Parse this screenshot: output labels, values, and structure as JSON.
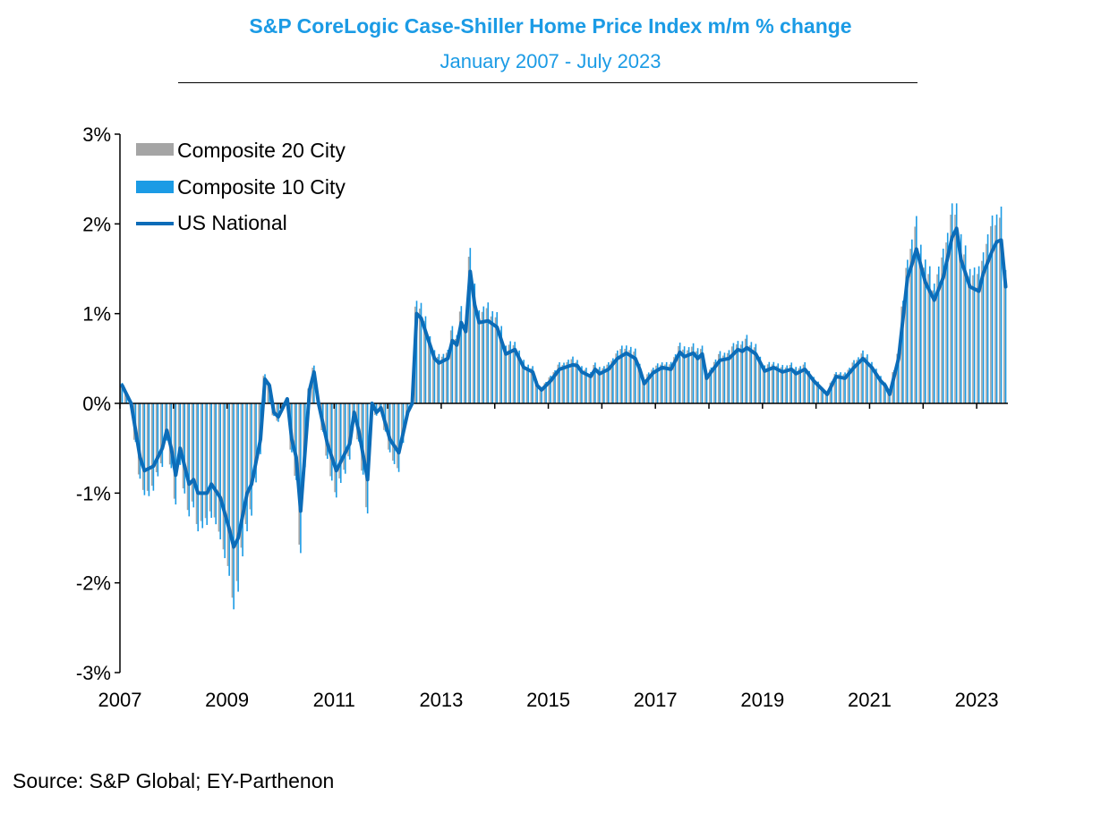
{
  "chart_data": {
    "type": "bar+line",
    "title": "S&P CoreLogic Case-Shiller Home Price Index m/m % change",
    "subtitle": "January 2007 - July 2023",
    "source": "Source: S&P Global; EY-Parthenon",
    "ylim": [
      -3,
      3
    ],
    "y_ticks": [
      3,
      2,
      1,
      0,
      -1,
      -2,
      -3
    ],
    "y_tick_labels": [
      "3%",
      "2%",
      "1%",
      "0%",
      "-1%",
      "-2%",
      "-3%"
    ],
    "x_ticks": [
      2007,
      2009,
      2011,
      2013,
      2015,
      2017,
      2019,
      2021,
      2023
    ],
    "x_tick_labels": [
      "2007",
      "2009",
      "2011",
      "2013",
      "2015",
      "2017",
      "2019",
      "2021",
      "2023"
    ],
    "grid": false,
    "legend_position": "top-left",
    "x_start": "2007-01",
    "x_end": "2023-07",
    "national_anchors": [
      [
        "2007-01",
        0.2
      ],
      [
        "2007-03",
        0.0
      ],
      [
        "2007-05",
        -0.6
      ],
      [
        "2007-06",
        -0.75
      ],
      [
        "2007-08",
        -0.7
      ],
      [
        "2007-10",
        -0.5
      ],
      [
        "2007-11",
        -0.3
      ],
      [
        "2007-12",
        -0.5
      ],
      [
        "2008-01",
        -0.8
      ],
      [
        "2008-02",
        -0.5
      ],
      [
        "2008-04",
        -0.9
      ],
      [
        "2008-05",
        -0.85
      ],
      [
        "2008-06",
        -1.0
      ],
      [
        "2008-08",
        -1.0
      ],
      [
        "2008-09",
        -0.9
      ],
      [
        "2008-11",
        -1.05
      ],
      [
        "2009-01",
        -1.4
      ],
      [
        "2009-02",
        -1.6
      ],
      [
        "2009-03",
        -1.5
      ],
      [
        "2009-05",
        -1.0
      ],
      [
        "2009-06",
        -0.9
      ],
      [
        "2009-08",
        -0.4
      ],
      [
        "2009-09",
        0.27
      ],
      [
        "2009-10",
        0.2
      ],
      [
        "2009-11",
        -0.1
      ],
      [
        "2009-12",
        -0.15
      ],
      [
        "2010-02",
        0.05
      ],
      [
        "2010-03",
        -0.4
      ],
      [
        "2010-04",
        -0.6
      ],
      [
        "2010-05",
        -1.2
      ],
      [
        "2010-07",
        0.15
      ],
      [
        "2010-08",
        0.35
      ],
      [
        "2010-09",
        0.0
      ],
      [
        "2010-11",
        -0.45
      ],
      [
        "2011-01",
        -0.75
      ],
      [
        "2011-02",
        -0.65
      ],
      [
        "2011-04",
        -0.45
      ],
      [
        "2011-05",
        -0.1
      ],
      [
        "2011-06",
        -0.3
      ],
      [
        "2011-08",
        -0.85
      ],
      [
        "2011-09",
        0.0
      ],
      [
        "2011-10",
        -0.1
      ],
      [
        "2011-11",
        -0.05
      ],
      [
        "2012-01",
        -0.4
      ],
      [
        "2012-03",
        -0.55
      ],
      [
        "2012-05",
        -0.1
      ],
      [
        "2012-06",
        0.0
      ],
      [
        "2012-07",
        1.0
      ],
      [
        "2012-08",
        0.95
      ],
      [
        "2012-09",
        0.8
      ],
      [
        "2012-11",
        0.5
      ],
      [
        "2012-12",
        0.45
      ],
      [
        "2013-02",
        0.5
      ],
      [
        "2013-03",
        0.7
      ],
      [
        "2013-04",
        0.65
      ],
      [
        "2013-05",
        0.9
      ],
      [
        "2013-06",
        0.8
      ],
      [
        "2013-07",
        1.47
      ],
      [
        "2013-08",
        1.1
      ],
      [
        "2013-09",
        0.9
      ],
      [
        "2013-11",
        0.92
      ],
      [
        "2014-01",
        0.85
      ],
      [
        "2014-03",
        0.55
      ],
      [
        "2014-05",
        0.6
      ],
      [
        "2014-07",
        0.4
      ],
      [
        "2014-09",
        0.35
      ],
      [
        "2014-10",
        0.2
      ],
      [
        "2014-11",
        0.15
      ],
      [
        "2015-01",
        0.25
      ],
      [
        "2015-03",
        0.38
      ],
      [
        "2015-06",
        0.43
      ],
      [
        "2015-07",
        0.42
      ],
      [
        "2015-08",
        0.35
      ],
      [
        "2015-10",
        0.3
      ],
      [
        "2015-11",
        0.38
      ],
      [
        "2015-12",
        0.33
      ],
      [
        "2016-02",
        0.38
      ],
      [
        "2016-04",
        0.5
      ],
      [
        "2016-06",
        0.56
      ],
      [
        "2016-08",
        0.5
      ],
      [
        "2016-09",
        0.38
      ],
      [
        "2016-10",
        0.22
      ],
      [
        "2016-12",
        0.34
      ],
      [
        "2017-02",
        0.4
      ],
      [
        "2017-04",
        0.38
      ],
      [
        "2017-06",
        0.57
      ],
      [
        "2017-07",
        0.52
      ],
      [
        "2017-09",
        0.56
      ],
      [
        "2017-10",
        0.5
      ],
      [
        "2017-11",
        0.55
      ],
      [
        "2017-12",
        0.28
      ],
      [
        "2018-01",
        0.35
      ],
      [
        "2018-03",
        0.48
      ],
      [
        "2018-05",
        0.5
      ],
      [
        "2018-07",
        0.6
      ],
      [
        "2018-08",
        0.58
      ],
      [
        "2018-09",
        0.62
      ],
      [
        "2018-11",
        0.55
      ],
      [
        "2019-01",
        0.36
      ],
      [
        "2019-03",
        0.4
      ],
      [
        "2019-05",
        0.35
      ],
      [
        "2019-07",
        0.38
      ],
      [
        "2019-08",
        0.33
      ],
      [
        "2019-10",
        0.38
      ],
      [
        "2019-12",
        0.25
      ],
      [
        "2020-02",
        0.15
      ],
      [
        "2020-03",
        0.1
      ],
      [
        "2020-05",
        0.3
      ],
      [
        "2020-07",
        0.28
      ],
      [
        "2020-09",
        0.4
      ],
      [
        "2020-11",
        0.5
      ],
      [
        "2021-01",
        0.4
      ],
      [
        "2021-03",
        0.25
      ],
      [
        "2021-04",
        0.2
      ],
      [
        "2021-05",
        0.1
      ],
      [
        "2021-07",
        0.5
      ],
      [
        "2021-09",
        1.4
      ],
      [
        "2021-10",
        1.55
      ],
      [
        "2021-11",
        1.72
      ],
      [
        "2022-01",
        1.35
      ],
      [
        "2022-03",
        1.15
      ],
      [
        "2022-05",
        1.4
      ],
      [
        "2022-07",
        1.85
      ],
      [
        "2022-08",
        1.95
      ],
      [
        "2022-09",
        1.6
      ],
      [
        "2022-11",
        1.3
      ],
      [
        "2023-01",
        1.25
      ],
      [
        "2023-02",
        1.45
      ],
      [
        "2023-04",
        1.7
      ],
      [
        "2023-05",
        1.8
      ],
      [
        "2023-06",
        1.82
      ],
      [
        "2023-07",
        1.3
      ]
    ],
    "series": [
      {
        "name": "Composite 20 City",
        "kind": "bar",
        "color": "#a5a5a5"
      },
      {
        "name": "Composite 10 City",
        "kind": "bar",
        "color": "#1b9be5"
      },
      {
        "name": "US National",
        "kind": "line",
        "color": "#0c6cb8"
      }
    ]
  }
}
